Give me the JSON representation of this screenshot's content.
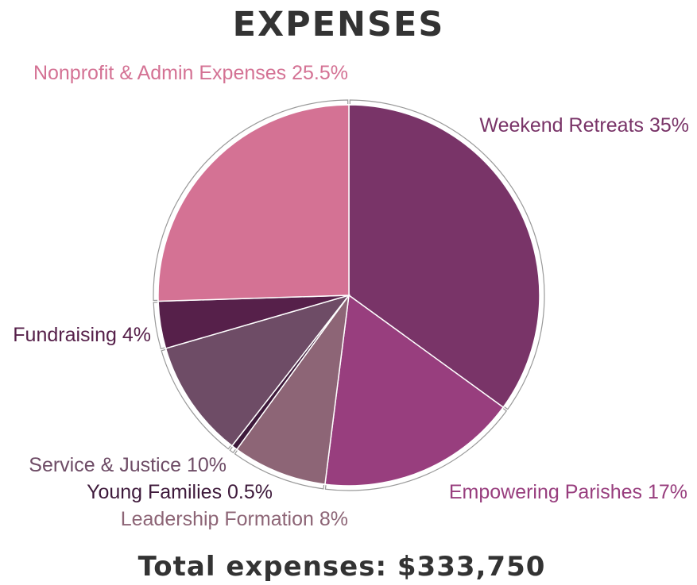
{
  "chart_data": {
    "type": "pie",
    "title": "EXPENSES",
    "footer": "Total expenses: $333,750",
    "slices": [
      {
        "label": "Weekend Retreats 35%",
        "name": "Weekend Retreats",
        "value": 35,
        "color": "#793468",
        "text_color": "#793468"
      },
      {
        "label": "Empowering Parishes 17%",
        "name": "Empowering Parishes",
        "value": 17,
        "color": "#983e7e",
        "text_color": "#983e7e"
      },
      {
        "label": "Leadership Formation 8%",
        "name": "Leadership Formation",
        "value": 8,
        "color": "#8d6576",
        "text_color": "#8d6576"
      },
      {
        "label": "Young Families 0.5%",
        "name": "Young Families",
        "value": 0.5,
        "color": "#3e1a3b",
        "text_color": "#3e1a3b"
      },
      {
        "label": "Service & Justice 10%",
        "name": "Service & Justice",
        "value": 10,
        "color": "#6e4c66",
        "text_color": "#6e4c66"
      },
      {
        "label": "Fundraising 4%",
        "name": "Fundraising",
        "value": 4,
        "color": "#56204a",
        "text_color": "#56204a"
      },
      {
        "label": "Nonprofit & Admin Expenses 25.5%",
        "name": "Nonprofit & Admin Expenses",
        "value": 25.5,
        "color": "#d47294",
        "text_color": "#d47294"
      }
    ]
  }
}
